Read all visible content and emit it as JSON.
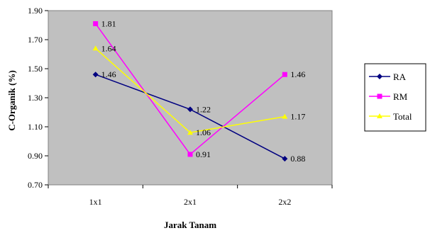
{
  "chart_data": {
    "type": "line",
    "title": "",
    "xlabel": "Jarak Tanam",
    "ylabel": "C-Organik (%)",
    "categories": [
      "1x1",
      "2x1",
      "2x2"
    ],
    "ylim": [
      0.7,
      1.9
    ],
    "yticks": [
      "0.70",
      "0.90",
      "1.10",
      "1.30",
      "1.50",
      "1.70",
      "1.90"
    ],
    "grid": false,
    "legend_position": "right",
    "plot_background": "#c0c0c0",
    "series": [
      {
        "name": "RA",
        "color": "#000080",
        "marker": "diamond",
        "values": [
          1.46,
          1.22,
          0.88
        ],
        "labels": [
          "1.46",
          "1.22",
          "0.88"
        ]
      },
      {
        "name": "RM",
        "color": "#ff00ff",
        "marker": "square",
        "values": [
          1.81,
          0.91,
          1.46
        ],
        "labels": [
          "1.81",
          "0.91",
          "1.46"
        ]
      },
      {
        "name": "Total",
        "color": "#ffff00",
        "marker": "triangle",
        "values": [
          1.64,
          1.06,
          1.17
        ],
        "labels": [
          "1.64",
          "1.06",
          "1.17"
        ]
      }
    ]
  }
}
